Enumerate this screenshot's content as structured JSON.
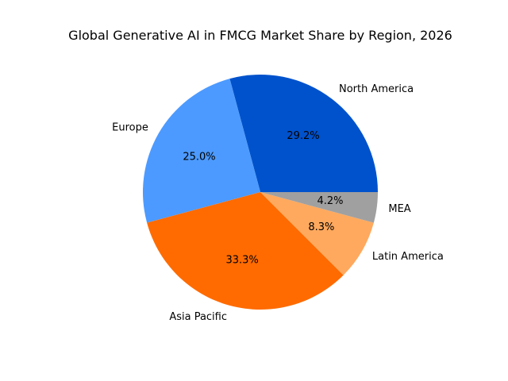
{
  "chart_data": {
    "type": "pie",
    "title": "Global Generative AI in FMCG Market Share by Region, 2026",
    "slices": [
      {
        "label": "North America",
        "value": 29.2,
        "pct_label": "29.2%",
        "color": "#0052cc"
      },
      {
        "label": "Europe",
        "value": 25.0,
        "pct_label": "25.0%",
        "color": "#4c9aff"
      },
      {
        "label": "Asia Pacific",
        "value": 33.3,
        "pct_label": "33.3%",
        "color": "#ff6b00"
      },
      {
        "label": "Latin America",
        "value": 8.3,
        "pct_label": "8.3%",
        "color": "#ffa95e"
      },
      {
        "label": "MEA",
        "value": 4.2,
        "pct_label": "4.2%",
        "color": "#a0a0a0"
      }
    ],
    "start_angle_deg": 0,
    "direction": "counterclockwise"
  }
}
